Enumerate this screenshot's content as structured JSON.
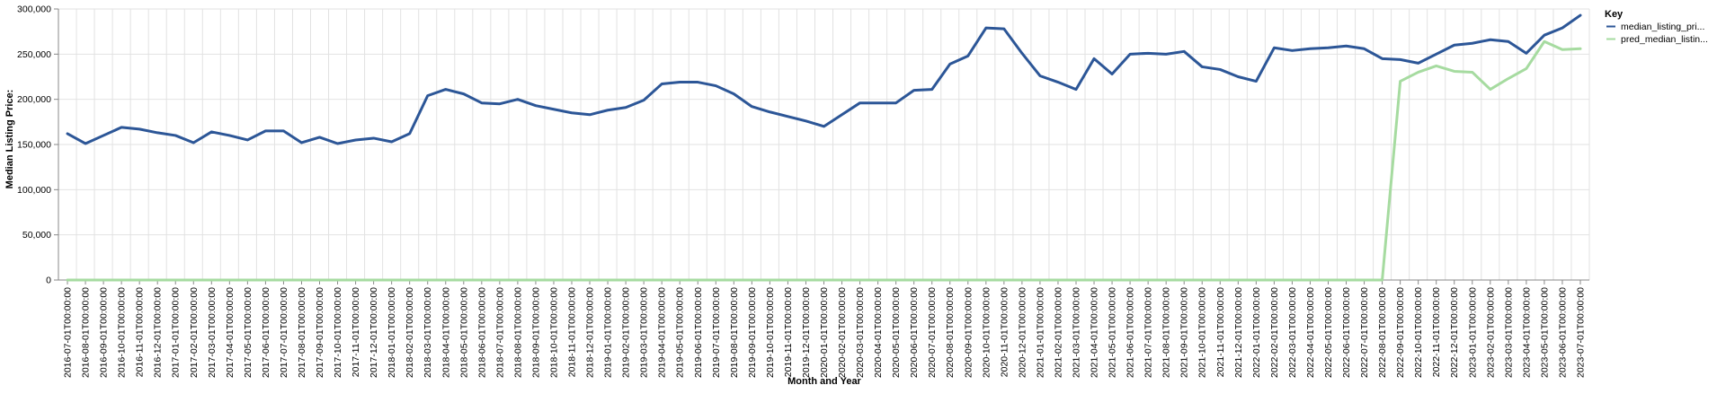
{
  "chart_data": {
    "type": "line",
    "title": "",
    "xlabel": "Month and Year",
    "ylabel": "Median Listing Price:",
    "ylim": [
      0,
      300000
    ],
    "yticks": [
      0,
      50000,
      100000,
      150000,
      200000,
      250000,
      300000
    ],
    "ytick_labels": [
      "0",
      "50,000",
      "100,000",
      "150,000",
      "200,000",
      "250,000",
      "300,000"
    ],
    "grid": true,
    "legend_position": "top-right",
    "legend_title": "Key",
    "colors": {
      "median": "#2c5697",
      "pred": "#a6dba0",
      "grid": "#e2e2e2",
      "axis": "#888888"
    },
    "categories": [
      "2016-07-01T00:00:00",
      "2016-08-01T00:00:00",
      "2016-09-01T00:00:00",
      "2016-10-01T00:00:00",
      "2016-11-01T00:00:00",
      "2016-12-01T00:00:00",
      "2017-01-01T00:00:00",
      "2017-02-01T00:00:00",
      "2017-03-01T00:00:00",
      "2017-04-01T00:00:00",
      "2017-05-01T00:00:00",
      "2017-06-01T00:00:00",
      "2017-07-01T00:00:00",
      "2017-08-01T00:00:00",
      "2017-09-01T00:00:00",
      "2017-10-01T00:00:00",
      "2017-11-01T00:00:00",
      "2017-12-01T00:00:00",
      "2018-01-01T00:00:00",
      "2018-02-01T00:00:00",
      "2018-03-01T00:00:00",
      "2018-04-01T00:00:00",
      "2018-05-01T00:00:00",
      "2018-06-01T00:00:00",
      "2018-07-01T00:00:00",
      "2018-08-01T00:00:00",
      "2018-09-01T00:00:00",
      "2018-10-01T00:00:00",
      "2018-11-01T00:00:00",
      "2018-12-01T00:00:00",
      "2019-01-01T00:00:00",
      "2019-02-01T00:00:00",
      "2019-03-01T00:00:00",
      "2019-04-01T00:00:00",
      "2019-05-01T00:00:00",
      "2019-06-01T00:00:00",
      "2019-07-01T00:00:00",
      "2019-08-01T00:00:00",
      "2019-09-01T00:00:00",
      "2019-10-01T00:00:00",
      "2019-11-01T00:00:00",
      "2019-12-01T00:00:00",
      "2020-01-01T00:00:00",
      "2020-02-01T00:00:00",
      "2020-03-01T00:00:00",
      "2020-04-01T00:00:00",
      "2020-05-01T00:00:00",
      "2020-06-01T00:00:00",
      "2020-07-01T00:00:00",
      "2020-08-01T00:00:00",
      "2020-09-01T00:00:00",
      "2020-10-01T00:00:00",
      "2020-11-01T00:00:00",
      "2020-12-01T00:00:00",
      "2021-01-01T00:00:00",
      "2021-02-01T00:00:00",
      "2021-03-01T00:00:00",
      "2021-04-01T00:00:00",
      "2021-05-01T00:00:00",
      "2021-06-01T00:00:00",
      "2021-07-01T00:00:00",
      "2021-08-01T00:00:00",
      "2021-09-01T00:00:00",
      "2021-10-01T00:00:00",
      "2021-11-01T00:00:00",
      "2021-12-01T00:00:00",
      "2022-01-01T00:00:00",
      "2022-02-01T00:00:00",
      "2022-03-01T00:00:00",
      "2022-04-01T00:00:00",
      "2022-05-01T00:00:00",
      "2022-06-01T00:00:00",
      "2022-07-01T00:00:00",
      "2022-08-01T00:00:00",
      "2022-09-01T00:00:00",
      "2022-10-01T00:00:00",
      "2022-11-01T00:00:00",
      "2022-12-01T00:00:00",
      "2023-01-01T00:00:00",
      "2023-02-01T00:00:00",
      "2023-03-01T00:00:00",
      "2023-04-01T00:00:00",
      "2023-05-01T00:00:00",
      "2023-06-01T00:00:00",
      "2023-07-01T00:00:00"
    ],
    "series": [
      {
        "name": "median_listing_pri...",
        "color_key": "median",
        "values": [
          162000,
          151000,
          160000,
          169000,
          167000,
          163000,
          160000,
          152000,
          164000,
          160000,
          155000,
          165000,
          165000,
          152000,
          158000,
          151000,
          155000,
          157000,
          153000,
          162000,
          204000,
          211000,
          206000,
          196000,
          195000,
          200000,
          193000,
          189000,
          185000,
          183000,
          188000,
          191000,
          199000,
          217000,
          219000,
          219000,
          215000,
          206000,
          192000,
          186000,
          181000,
          176000,
          170000,
          183000,
          196000,
          196000,
          196000,
          210000,
          211000,
          239000,
          248000,
          279000,
          278000,
          251000,
          226000,
          219000,
          211000,
          245000,
          228000,
          250000,
          251000,
          250000,
          253000,
          236000,
          233000,
          225000,
          220000,
          257000,
          254000,
          256000,
          257000,
          259000,
          256000,
          245000,
          244000,
          240000,
          250000,
          260000,
          262000,
          266000,
          264000,
          251000,
          271000,
          279000,
          293000
        ]
      },
      {
        "name": "pred_median_listin...",
        "color_key": "pred",
        "values": [
          0,
          0,
          0,
          0,
          0,
          0,
          0,
          0,
          0,
          0,
          0,
          0,
          0,
          0,
          0,
          0,
          0,
          0,
          0,
          0,
          0,
          0,
          0,
          0,
          0,
          0,
          0,
          0,
          0,
          0,
          0,
          0,
          0,
          0,
          0,
          0,
          0,
          0,
          0,
          0,
          0,
          0,
          0,
          0,
          0,
          0,
          0,
          0,
          0,
          0,
          0,
          0,
          0,
          0,
          0,
          0,
          0,
          0,
          0,
          0,
          0,
          0,
          0,
          0,
          0,
          0,
          0,
          0,
          0,
          0,
          0,
          0,
          0,
          0,
          220000,
          230000,
          237000,
          231000,
          230000,
          211000,
          223000,
          234000,
          264000,
          255000,
          256000
        ]
      }
    ]
  }
}
